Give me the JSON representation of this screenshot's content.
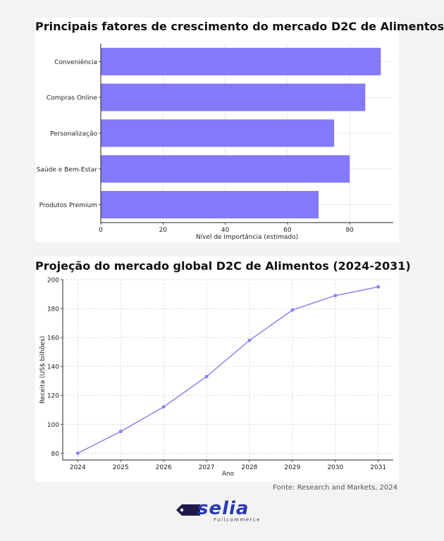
{
  "chart_data": [
    {
      "type": "bar",
      "orientation": "horizontal",
      "title": "Principais fatores de crescimento do mercado D2C de Alimentos",
      "categories": [
        "Conveniência",
        "Compras Online",
        "Personalização",
        "Saúde e Bem-Estar",
        "Produtos Premium"
      ],
      "values": [
        90,
        85,
        75,
        80,
        70
      ],
      "xlabel": "Nível de Importância (estimado)",
      "ylabel": "",
      "xlim": [
        0,
        94
      ],
      "xticks": [
        0,
        20,
        40,
        60,
        80
      ],
      "grid": true,
      "color": "#8478fb"
    },
    {
      "type": "line",
      "title": "Projeção do mercado global D2C de Alimentos (2024-2031)",
      "x": [
        2024,
        2025,
        2026,
        2027,
        2028,
        2029,
        2030,
        2031
      ],
      "values": [
        80,
        95,
        112,
        133,
        158,
        179,
        189,
        195
      ],
      "xlabel": "Ano",
      "ylabel": "Receita (US$ bilhões)",
      "xlim": [
        2023.65,
        2031.35
      ],
      "ylim": [
        75.3,
        200
      ],
      "yticks": [
        80,
        100,
        120,
        140,
        160,
        180,
        200
      ],
      "grid": true,
      "color": "#8a85f0"
    }
  ],
  "footer": {
    "source": "Fonte: Research and Markets, 2024",
    "logo_word": "selia",
    "logo_sub": "Fullcommerce"
  }
}
